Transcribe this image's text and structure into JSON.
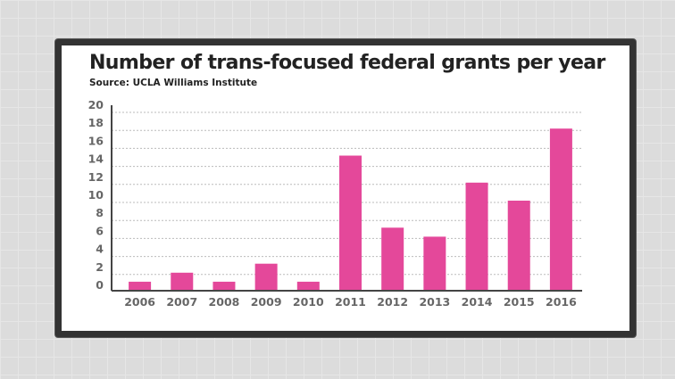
{
  "chart_data": {
    "type": "bar",
    "title": "Number of trans-focused federal grants per year",
    "subtitle": "Source: UCLA Williams Institute",
    "xlabel": "",
    "ylabel": "",
    "categories": [
      "2006",
      "2007",
      "2008",
      "2009",
      "2010",
      "2011",
      "2012",
      "2013",
      "2014",
      "2015",
      "2016"
    ],
    "values": [
      1,
      2,
      1,
      3,
      1,
      15,
      7,
      6,
      12,
      10,
      18
    ],
    "ylim": [
      0,
      20
    ],
    "yticks": [
      0,
      2,
      4,
      6,
      8,
      10,
      12,
      14,
      16,
      18,
      20
    ],
    "grid": true,
    "bar_color": "#e4489a"
  }
}
